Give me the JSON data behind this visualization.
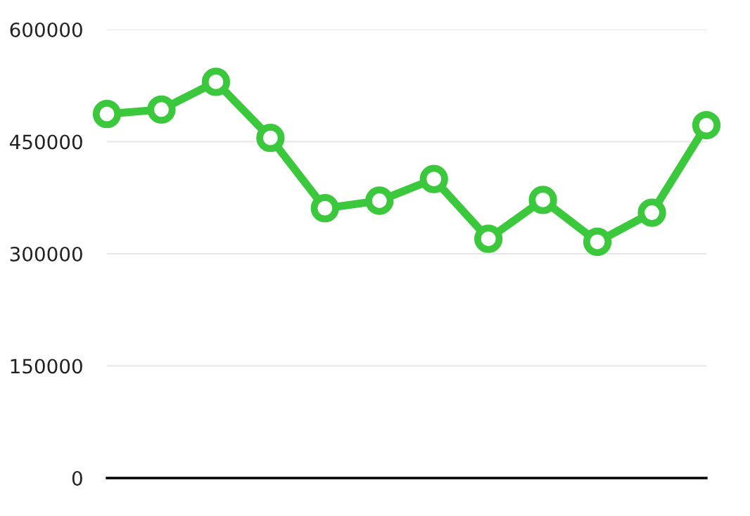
{
  "chart_data": {
    "type": "line",
    "categories": [
      null,
      null,
      null,
      null,
      null,
      null,
      null,
      null,
      null,
      null,
      null,
      null
    ],
    "series": [
      {
        "color": "#3cc83c",
        "values": [
          487000,
          493000,
          530000,
          455000,
          361000,
          371000,
          400000,
          320000,
          372000,
          316000,
          355000,
          472000
        ]
      }
    ],
    "ylim": [
      0,
      600000
    ],
    "yticks": [
      0,
      150000,
      300000,
      450000,
      600000
    ],
    "grid": "y",
    "marker": "circle",
    "line_style": "solid",
    "tick_labels": "y"
  }
}
